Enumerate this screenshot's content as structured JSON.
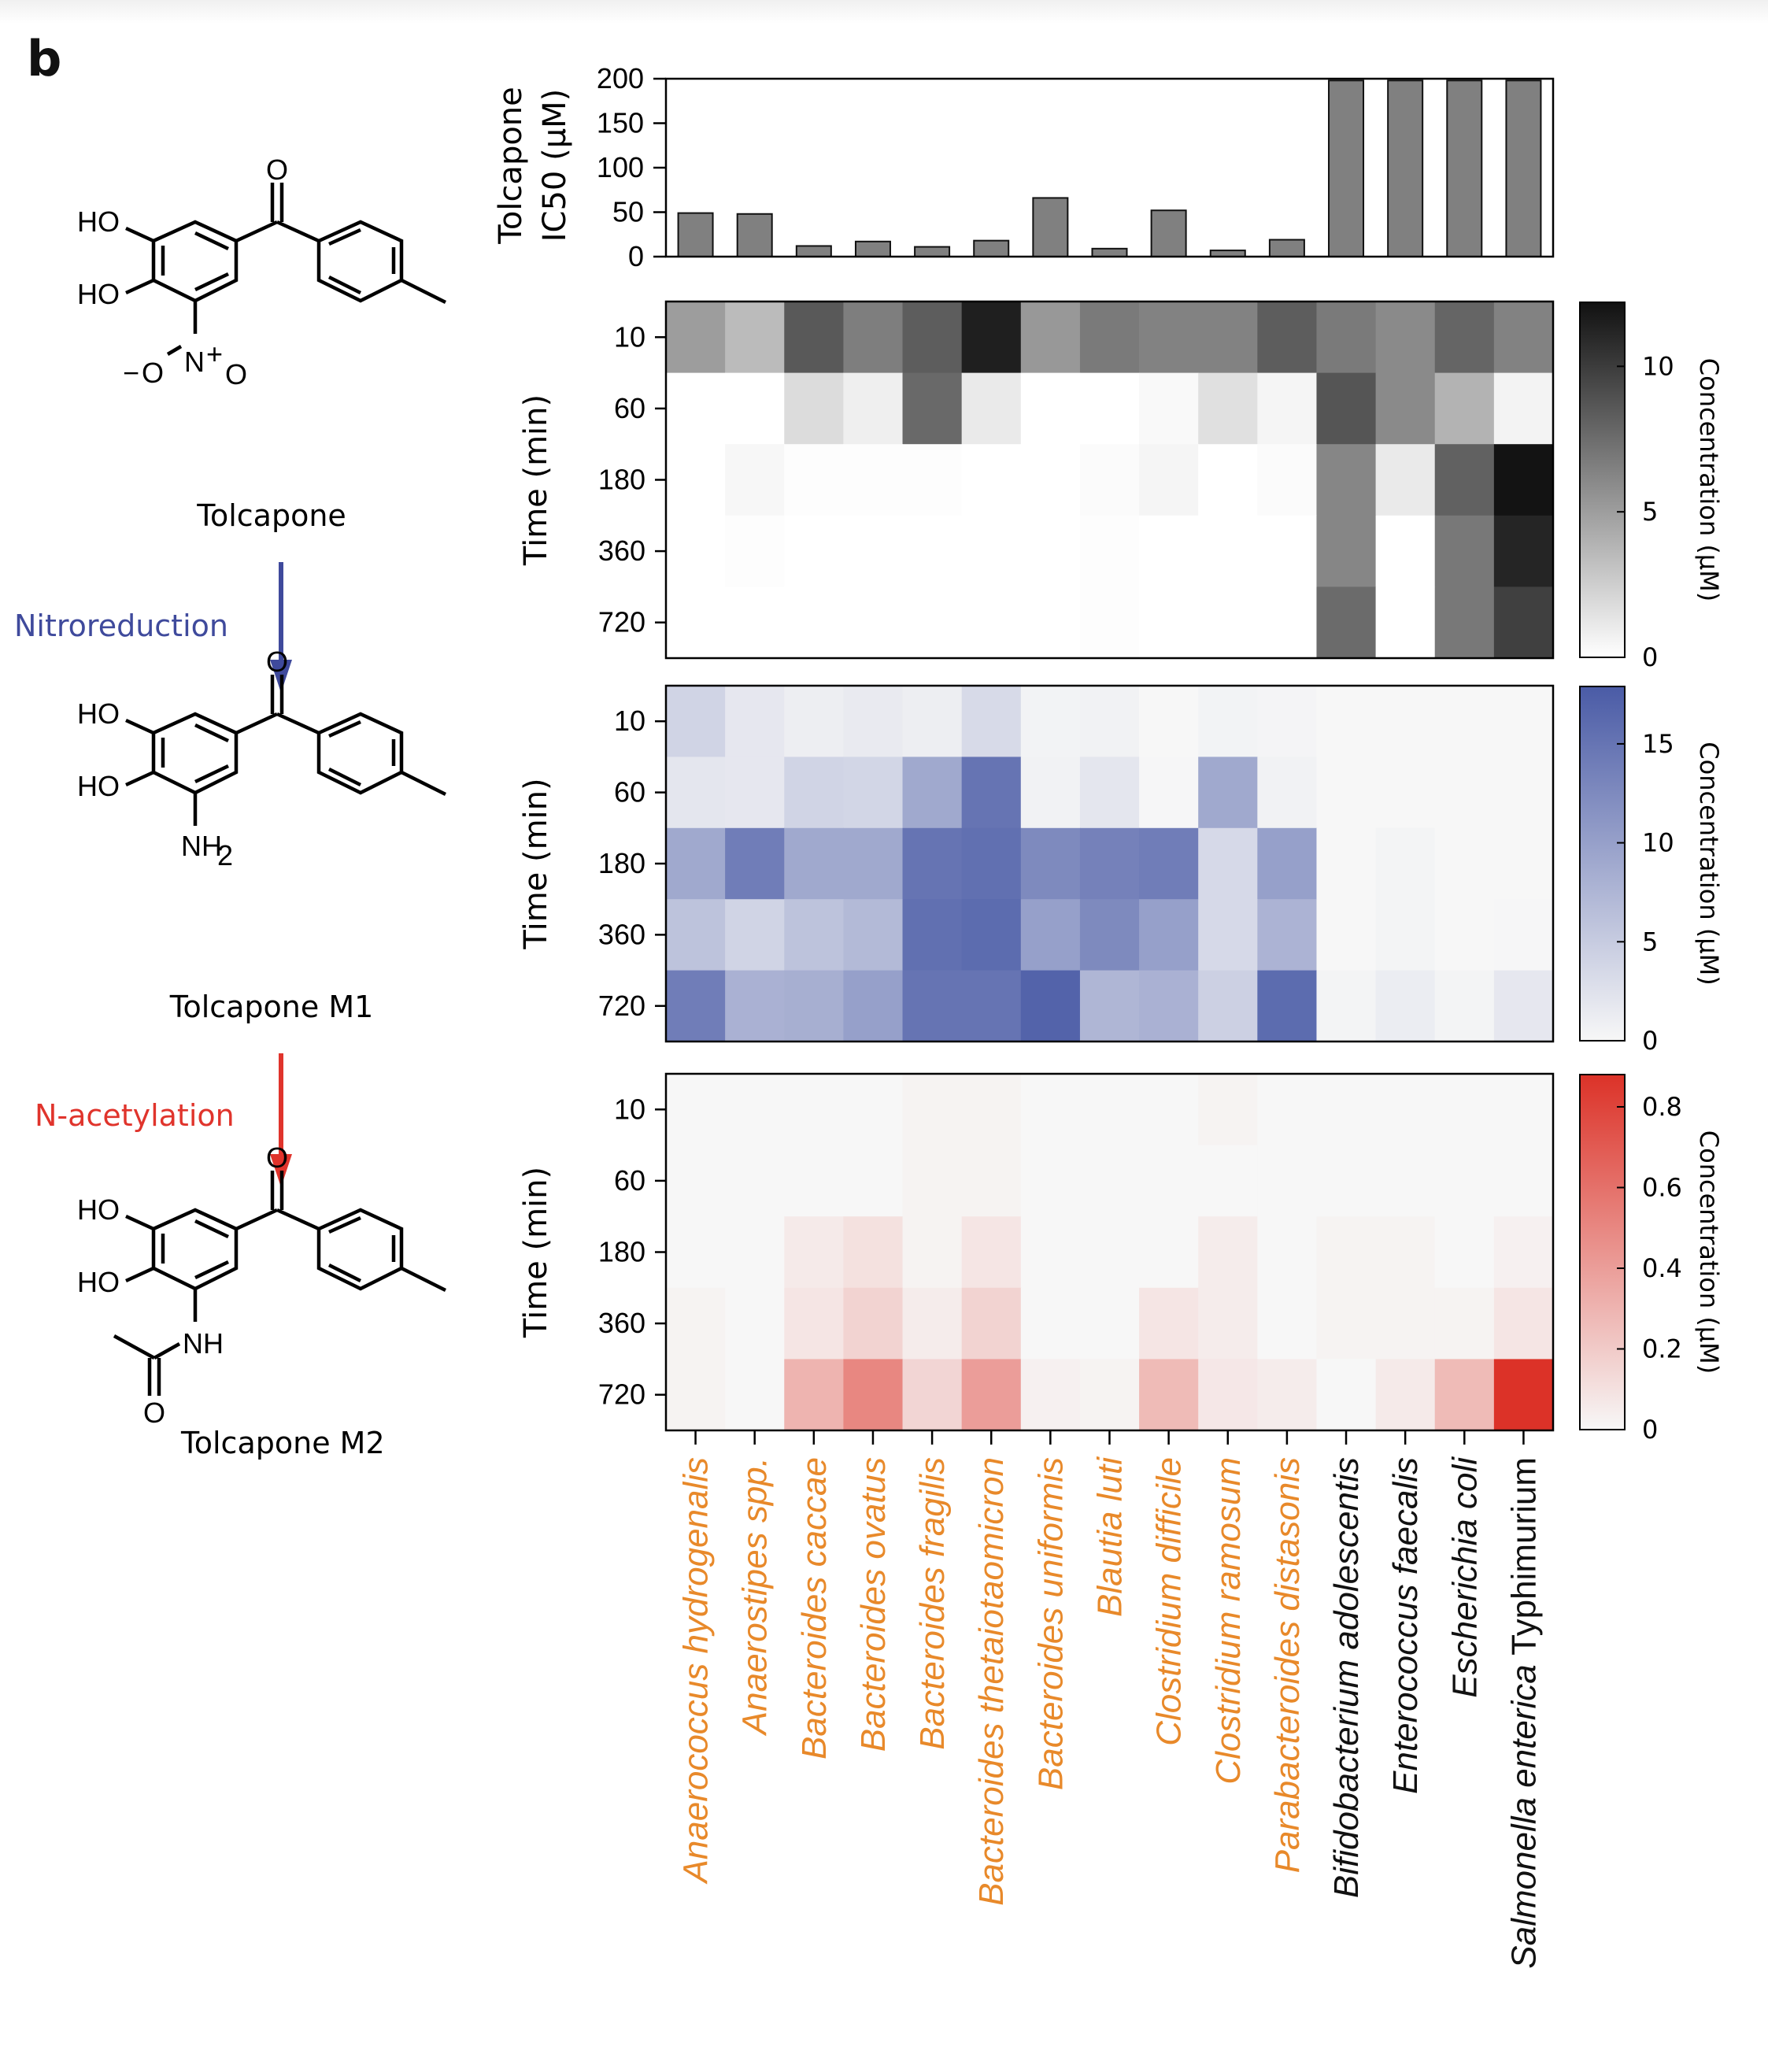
{
  "panel_letter": "b",
  "pathway": {
    "compounds": [
      {
        "name": "Tolcapone",
        "substituent": "NO2",
        "atoms": {
          "carbonyl_o": "O",
          "oh1": "HO",
          "oh2": "HO",
          "n": "N",
          "charge": "+",
          "o_minus": "O",
          "minus": "−",
          "o_nitro": "O"
        }
      },
      {
        "name": "Tolcapone M1",
        "substituent": "NH2",
        "atoms": {
          "carbonyl_o": "O",
          "oh1": "HO",
          "oh2": "HO",
          "nh": "NH",
          "sub2": "2"
        }
      },
      {
        "name": "Tolcapone M2",
        "substituent": "NHAc",
        "atoms": {
          "carbonyl_o": "O",
          "oh1": "HO",
          "oh2": "HO",
          "nh": "NH",
          "acetyl_o": "O"
        }
      }
    ],
    "steps": [
      {
        "label": "Nitroreduction",
        "color": "#3f4a9c"
      },
      {
        "label": "N-acetylation",
        "color": "#e0342c"
      }
    ]
  },
  "chart_data": [
    {
      "type": "bar",
      "id": "ic50",
      "ylabel_line1": "Tolcapone",
      "ylabel_line2": "IC50 (μM)",
      "ylim": [
        0,
        200
      ],
      "yticks": [
        0,
        50,
        100,
        150,
        200
      ],
      "bar_color": "#808080",
      "categories": [
        "Anaerococcus hydrogenalis",
        "Anaerostipes spp.",
        "Bacteroides caccae",
        "Bacteroides ovatus",
        "Bacteroides fragilis",
        "Bacteroides thetaiotaomicron",
        "Bacteroides uniformis",
        "Blautia luti",
        "Clostridium difficile",
        "Clostridium ramosum",
        "Parabacteroides distasonis",
        "Bifidobacterium adolescentis",
        "Enterococcus faecalis",
        "Escherichia coli",
        "Salmonella enterica Typhimurium"
      ],
      "values": [
        49,
        48,
        12,
        17,
        11,
        18,
        66,
        9,
        52,
        7,
        19,
        198,
        198,
        198,
        198
      ]
    },
    {
      "type": "heatmap",
      "id": "tolcapone",
      "ylabel": "Time (min)",
      "rows": [
        "10",
        "60",
        "180",
        "360",
        "720"
      ],
      "colorbar_label": "Concentration (μM)",
      "colorbar_range": [
        0,
        12.2
      ],
      "colorbar_ticks": [
        "0",
        "5",
        "10"
      ],
      "colorbar_tick_values": [
        0,
        5,
        10
      ],
      "color_low": "#ffffff",
      "color_high": "#111111",
      "values": [
        [
          5.0,
          3.5,
          8.5,
          6.6,
          8.3,
          11.5,
          5.3,
          6.8,
          6.4,
          6.4,
          8.3,
          6.8,
          6.0,
          7.9,
          6.4
        ],
        [
          0,
          0,
          1.8,
          0.8,
          7.7,
          1.1,
          0,
          0,
          0.3,
          1.6,
          0.5,
          8.7,
          6.0,
          3.9,
          0.6
        ],
        [
          0,
          0.4,
          0.1,
          0.1,
          0.1,
          0,
          0,
          0.2,
          0.5,
          0,
          0.2,
          6.2,
          1.1,
          8.1,
          12.1
        ],
        [
          0,
          0.1,
          0,
          0,
          0,
          0,
          0,
          0.1,
          0,
          0,
          0,
          6.2,
          0,
          6.9,
          11.2
        ],
        [
          0,
          0,
          0,
          0,
          0,
          0,
          0,
          0.1,
          0,
          0,
          0,
          7.6,
          0,
          6.9,
          9.8
        ]
      ]
    },
    {
      "type": "heatmap",
      "id": "tolcapone-m1",
      "ylabel": "Time (min)",
      "rows": [
        "10",
        "60",
        "180",
        "360",
        "720"
      ],
      "colorbar_label": "Concentration (μM)",
      "colorbar_range": [
        0,
        17.9
      ],
      "colorbar_ticks": [
        "0",
        "5",
        "10",
        "15"
      ],
      "colorbar_tick_values": [
        0,
        5,
        10,
        15
      ],
      "color_low": "#f7f7f7",
      "color_high": "#4a5ba6",
      "values": [
        [
          4.0,
          1.8,
          1.0,
          1.5,
          1.0,
          3.3,
          0.5,
          0.6,
          0,
          0.5,
          0.3,
          0,
          0,
          0,
          0
        ],
        [
          2.0,
          1.8,
          4.0,
          3.8,
          9.0,
          15.0,
          0.6,
          2.0,
          0.1,
          9.0,
          0.6,
          0,
          0,
          0,
          0
        ],
        [
          9.0,
          14.0,
          9.0,
          9.0,
          15.0,
          15.5,
          12.5,
          13.5,
          14.0,
          3.4,
          10.0,
          0,
          0.4,
          0,
          0
        ],
        [
          6.0,
          4.0,
          6.0,
          7.0,
          15.5,
          16.0,
          10.0,
          12.5,
          10.0,
          3.4,
          7.8,
          0,
          0.4,
          0,
          0.1
        ],
        [
          14.0,
          8.0,
          8.3,
          10.0,
          15.0,
          15.0,
          17.0,
          7.5,
          8.0,
          4.5,
          16.0,
          0.4,
          1.2,
          0.4,
          1.8
        ]
      ]
    },
    {
      "type": "heatmap",
      "id": "tolcapone-m2",
      "ylabel": "Time (min)",
      "rows": [
        "10",
        "60",
        "180",
        "360",
        "720"
      ],
      "colorbar_label": "Concentration (μM)",
      "colorbar_range": [
        0,
        0.88
      ],
      "colorbar_ticks": [
        "0",
        "0.2",
        "0.4",
        "0.6",
        "0.8"
      ],
      "colorbar_tick_values": [
        0,
        0.2,
        0.4,
        0.6,
        0.8
      ],
      "color_low": "#f7f7f7",
      "color_high": "#dc3228",
      "values": [
        [
          0,
          0,
          0,
          0,
          0.02,
          0.02,
          0,
          0,
          0,
          0.02,
          0,
          0,
          0,
          0,
          0
        ],
        [
          0,
          0,
          0,
          0,
          0.02,
          0.02,
          0,
          0,
          0,
          0,
          0,
          0,
          0,
          0,
          0
        ],
        [
          0,
          0,
          0.06,
          0.1,
          0.02,
          0.08,
          0,
          0,
          0,
          0.05,
          0,
          0.02,
          0.02,
          0,
          0.03
        ],
        [
          0.02,
          0,
          0.08,
          0.16,
          0.05,
          0.16,
          0,
          0,
          0.08,
          0.05,
          0,
          0.02,
          0.02,
          0.02,
          0.08
        ],
        [
          0.02,
          0,
          0.3,
          0.5,
          0.15,
          0.4,
          0.03,
          0.02,
          0.27,
          0.07,
          0.05,
          0,
          0.06,
          0.27,
          0.88
        ]
      ]
    }
  ],
  "species": [
    {
      "genus": "Anaerococcus hydrogenalis",
      "suffix": "",
      "group": "orange"
    },
    {
      "genus": "Anaerostipes spp.",
      "suffix": "",
      "group": "orange"
    },
    {
      "genus": "Bacteroides caccae",
      "suffix": "",
      "group": "orange"
    },
    {
      "genus": "Bacteroides ovatus",
      "suffix": "",
      "group": "orange"
    },
    {
      "genus": "Bacteroides fragilis",
      "suffix": "",
      "group": "orange"
    },
    {
      "genus": "Bacteroides thetaiotaomicron",
      "suffix": "",
      "group": "orange"
    },
    {
      "genus": "Bacteroides uniformis",
      "suffix": "",
      "group": "orange"
    },
    {
      "genus": "Blautia luti",
      "suffix": "",
      "group": "orange"
    },
    {
      "genus": "Clostridium difficile",
      "suffix": "",
      "group": "orange"
    },
    {
      "genus": "Clostridium ramosum",
      "suffix": "",
      "group": "orange"
    },
    {
      "genus": "Parabacteroides distasonis",
      "suffix": "",
      "group": "orange"
    },
    {
      "genus": "Bifidobacterium adolescentis",
      "suffix": "",
      "group": "black"
    },
    {
      "genus": "Enterococcus faecalis",
      "suffix": "",
      "group": "black"
    },
    {
      "genus": "Escherichia coli",
      "suffix": "",
      "group": "black"
    },
    {
      "genus": "Salmonella enterica",
      "suffix": " Typhimurium",
      "group": "black"
    }
  ],
  "colors": {
    "orange": "#e8892a",
    "black": "#111111",
    "bar": "#808080"
  }
}
